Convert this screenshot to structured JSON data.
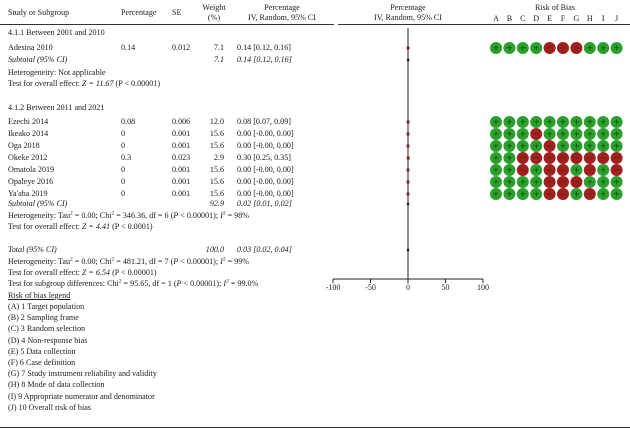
{
  "headers": {
    "study": "Study or Subgroup",
    "percentage": "Percentage",
    "se": "SE",
    "weight_line1": "Weight",
    "weight_line2": "(%)",
    "ci_line1": "Percentage",
    "ci_line2": "IV, Random, 95% CI",
    "plot_line1": "Percentage",
    "plot_line2": "IV, Random, 95% CI",
    "rob_title": "Risk of Bias",
    "rob_letters": [
      "A",
      "B",
      "C",
      "D",
      "E",
      "F",
      "G",
      "H",
      "I",
      "J"
    ]
  },
  "subgroup1": {
    "title": "4.1.1 Between 2001 and 2010",
    "subtotal": {
      "label": "Subtotal (95% CI)",
      "weight": "7.1",
      "ci": "0.14 [0.12, 0.16]"
    },
    "heterogeneity": "Heterogeneity: Not applicable",
    "overall_prefix": "Test for overall effect: ",
    "overall_z": "Z = 11.67",
    "overall_p": " (P < 0.00001)"
  },
  "subgroup2": {
    "title": "4.1.2 Between 2011 and 2021",
    "subtotal": {
      "label": "Subtotal (95% CI)",
      "weight": "92.9",
      "ci": "0.02 [0.01, 0.02]"
    },
    "heterogeneity": {
      "a": "Heterogeneity: Tau",
      "sup1": "2",
      "b": " = 0.00; Chi",
      "sup2": "2",
      "c": " = 346.36, df = 6 (",
      "p": "P",
      "d": " < 0.00001); ",
      "i": "I",
      "sup3": "2",
      "e": " = 98%"
    },
    "overall_prefix": "Test for overall effect: ",
    "overall_z": "Z = 4.41",
    "overall_p": " (P < 0.0001)"
  },
  "total": {
    "label": "Total (95% CI)",
    "weight": "100.0",
    "ci": "0.03 [0.02, 0.04]",
    "heterogeneity": {
      "a": "Heterogeneity: Tau",
      "sup1": "2",
      "b": " = 0.00; Chi",
      "sup2": "2",
      "c": " = 481.21, df = 7 (",
      "p": "P",
      "d": " < 0.00001); ",
      "i": "I",
      "sup3": "2",
      "e": " = 99%"
    },
    "overall_prefix": "Test for overall effect: ",
    "overall_z": "Z = 6.54",
    "overall_p": " (P < 0.00001)",
    "subgroup_diff": {
      "a": "Test for subgroup differences: Chi",
      "sup1": "2",
      "b": " = 95.65, df = 1 (",
      "p": "P",
      "c": " < 0.00001); ",
      "i": "I",
      "sup2": "2",
      "d": " = 99.0%"
    }
  },
  "legend": {
    "title": "Risk of bias legend",
    "items": [
      "(A) 1 Target population",
      "(B) 2 Sampling frame",
      "(C) 3 Random selection",
      "(D) 4 Non-response bias",
      "(E) 5 Data collection",
      "(F) 6 Case definition",
      "(G) 7 Study instrument reliability and validity",
      "(H) 8 Mode of data collection",
      "(I) 9 Appropriate numerator and denominator",
      "(J) 10 Overall risk of bias"
    ]
  },
  "colors": {
    "low": "#2ca02c",
    "high": "#a31f1f",
    "marker": "#b52a2a",
    "line": "#222222"
  },
  "rob_symbols": {
    "low": "+",
    "high": "−"
  },
  "chart_data": {
    "type": "forest",
    "x_label": "",
    "x_ticks": [
      -100,
      -50,
      0,
      50,
      100
    ],
    "xlim": [
      -100,
      100
    ],
    "studies": [
      {
        "name": "Adesina 2010",
        "subgroup": 1,
        "percentage": "0.14",
        "se": "0.012",
        "weight": "7.1",
        "ci_text": "0.14 [0.12, 0.16]",
        "est": 0.14,
        "lo": 0.12,
        "hi": 0.16,
        "rob": [
          "L",
          "L",
          "L",
          "L",
          "H",
          "H",
          "H",
          "L",
          "L",
          "L"
        ]
      },
      {
        "name": "Ezechi 2014",
        "subgroup": 2,
        "percentage": "0.08",
        "se": "0.006",
        "weight": "12.0",
        "ci_text": "0.08 [0.07, 0.09]",
        "est": 0.08,
        "lo": 0.07,
        "hi": 0.09,
        "rob": [
          "L",
          "L",
          "L",
          "L",
          "L",
          "L",
          "L",
          "L",
          "L",
          "L"
        ]
      },
      {
        "name": "Ikeako 2014",
        "subgroup": 2,
        "percentage": "0",
        "se": "0.001",
        "weight": "15.6",
        "ci_text": "0.00 [-0.00, 0.00]",
        "est": 0,
        "lo": 0,
        "hi": 0,
        "rob": [
          "L",
          "L",
          "L",
          "H",
          "L",
          "L",
          "L",
          "L",
          "L",
          "L"
        ]
      },
      {
        "name": "Oga 2018",
        "subgroup": 2,
        "percentage": "0",
        "se": "0.001",
        "weight": "15.6",
        "ci_text": "0.00 [-0.00, 0.00]",
        "est": 0,
        "lo": 0,
        "hi": 0,
        "rob": [
          "L",
          "L",
          "L",
          "L",
          "H",
          "L",
          "L",
          "L",
          "L",
          "L"
        ]
      },
      {
        "name": "Okeke 2012",
        "subgroup": 2,
        "percentage": "0.3",
        "se": "0.023",
        "weight": "2.9",
        "ci_text": "0.30 [0.25, 0.35]",
        "est": 0.3,
        "lo": 0.25,
        "hi": 0.35,
        "rob": [
          "L",
          "L",
          "H",
          "H",
          "H",
          "H",
          "H",
          "H",
          "H",
          "H"
        ]
      },
      {
        "name": "Omatola 2019",
        "subgroup": 2,
        "percentage": "0",
        "se": "0.001",
        "weight": "15.6",
        "ci_text": "0.00 [-0.00, 0.00]",
        "est": 0,
        "lo": 0,
        "hi": 0,
        "rob": [
          "L",
          "L",
          "H",
          "L",
          "H",
          "H",
          "L",
          "H",
          "L",
          "H"
        ]
      },
      {
        "name": "Opaleye 2016",
        "subgroup": 2,
        "percentage": "0",
        "se": "0.001",
        "weight": "15.6",
        "ci_text": "0.00 [-0.00, 0.00]",
        "est": 0,
        "lo": 0,
        "hi": 0,
        "rob": [
          "L",
          "L",
          "L",
          "L",
          "H",
          "H",
          "H",
          "L",
          "L",
          "L"
        ]
      },
      {
        "name": "Ya'aba 2019",
        "subgroup": 2,
        "percentage": "0",
        "se": "0.001",
        "weight": "15.6",
        "ci_text": "0.00 [-0.00, 0.00]",
        "est": 0,
        "lo": 0,
        "hi": 0,
        "rob": [
          "L",
          "L",
          "L",
          "L",
          "H",
          "H",
          "L",
          "H",
          "L",
          "L"
        ]
      }
    ],
    "subtotals": [
      {
        "subgroup": 1,
        "est": 0.14,
        "lo": 0.12,
        "hi": 0.16
      },
      {
        "subgroup": 2,
        "est": 0.02,
        "lo": 0.01,
        "hi": 0.02
      }
    ],
    "total": {
      "est": 0.03,
      "lo": 0.02,
      "hi": 0.04
    }
  }
}
